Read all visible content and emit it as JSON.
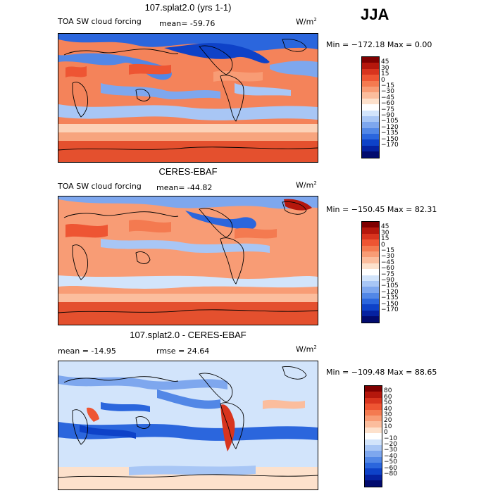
{
  "season": "JJA",
  "panels": [
    {
      "id": "model",
      "title": "107.splat2.0 (yrs 1-1)",
      "left_label": "TOA SW cloud forcing",
      "stat_label": "mean= -59.76",
      "units": "W/m",
      "units_sup": "2",
      "range_label": "Min = −172.18 Max =    0.00",
      "colorbar": {
        "colors": [
          "#7f0000",
          "#b5170c",
          "#d8341e",
          "#ee5533",
          "#f47a50",
          "#f89c75",
          "#fbbd9d",
          "#fde1cc",
          "#ffffff",
          "#d2e4fb",
          "#a8c6f5",
          "#7ea7ee",
          "#5287e6",
          "#2b66dd",
          "#0e42c8",
          "#0522a1",
          "#020b6e"
        ],
        "labels": [
          "45",
          "30",
          "15",
          "0",
          "−15",
          "−30",
          "−45",
          "−60",
          "−75",
          "−90",
          "−105",
          "−120",
          "−135",
          "−150",
          "−170"
        ]
      }
    },
    {
      "id": "obs",
      "title": "CERES-EBAF",
      "left_label": "TOA SW cloud forcing",
      "stat_label": "mean= -44.82",
      "units": "W/m",
      "units_sup": "2",
      "range_label": "Min = −150.45 Max =  82.31",
      "colorbar": {
        "colors": [
          "#7f0000",
          "#b5170c",
          "#d8341e",
          "#ee5533",
          "#f47a50",
          "#f89c75",
          "#fbbd9d",
          "#fde1cc",
          "#ffffff",
          "#d2e4fb",
          "#a8c6f5",
          "#7ea7ee",
          "#5287e6",
          "#2b66dd",
          "#0e42c8",
          "#0522a1",
          "#020b6e"
        ],
        "labels": [
          "45",
          "30",
          "15",
          "0",
          "−15",
          "−30",
          "−45",
          "−60",
          "−75",
          "−90",
          "−105",
          "−120",
          "−135",
          "−150",
          "−170"
        ]
      }
    },
    {
      "id": "diff",
      "title": "107.splat2.0 - CERES-EBAF",
      "left_label": "mean =  -14.95",
      "stat_label": "rmse =   24.64",
      "units": "W/m",
      "units_sup": "2",
      "range_label": "Min = −109.48 Max =  88.65",
      "colorbar": {
        "colors": [
          "#7f0000",
          "#b5170c",
          "#d8341e",
          "#ee5533",
          "#f47a50",
          "#f89c75",
          "#fbbd9d",
          "#fde1cc",
          "#ffffff",
          "#d2e4fb",
          "#a8c6f5",
          "#7ea7ee",
          "#5287e6",
          "#2b66dd",
          "#0e42c8",
          "#0522a1",
          "#020b6e"
        ],
        "labels": [
          "80",
          "60",
          "50",
          "40",
          "30",
          "20",
          "10",
          "0",
          "−10",
          "−20",
          "−30",
          "−40",
          "−50",
          "−60",
          "−80"
        ]
      }
    }
  ]
}
